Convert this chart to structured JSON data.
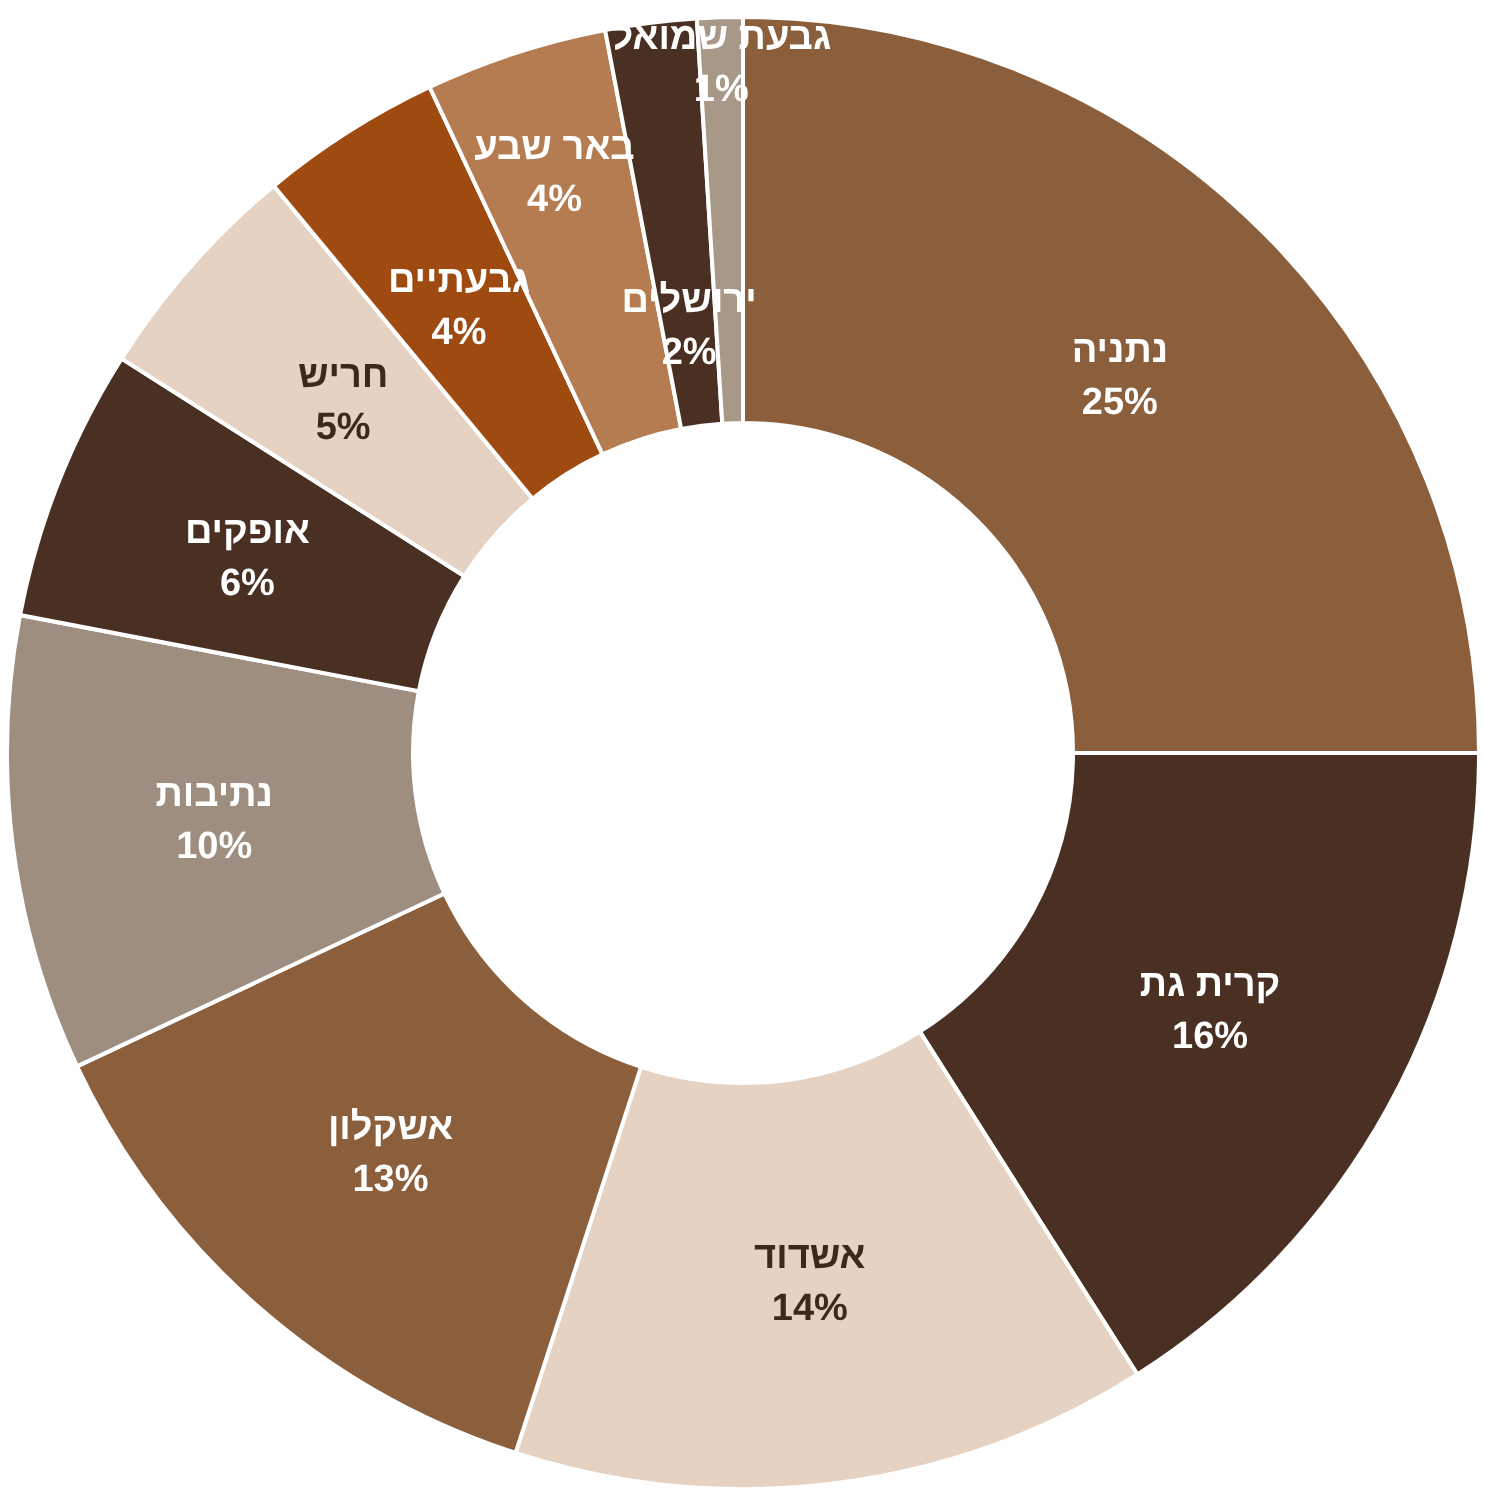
{
  "chart_data": {
    "type": "donut",
    "categories": [
      "נתניה",
      "קרית גת",
      "אשדוד",
      "אשקלון",
      "נתיבות",
      "אופקים",
      "חריש",
      "גבעתיים",
      "באר שבע",
      "ירושלים",
      "גבעת שמואל"
    ],
    "values": [
      25,
      16,
      14,
      13,
      10,
      6,
      5,
      4,
      4,
      2,
      1
    ],
    "value_labels": [
      "25%",
      "16%",
      "14%",
      "13%",
      "10%",
      "6%",
      "5%",
      "4%",
      "4%",
      "2%",
      "1%"
    ],
    "colors": [
      "#8b5e3c",
      "#4a3022",
      "#e6d2c2",
      "#8b5e3c",
      "#9e8e80",
      "#4a3022",
      "#e6d2c2",
      "#9e4a10",
      "#b47c50",
      "#4a3022",
      "#a89888"
    ]
  }
}
